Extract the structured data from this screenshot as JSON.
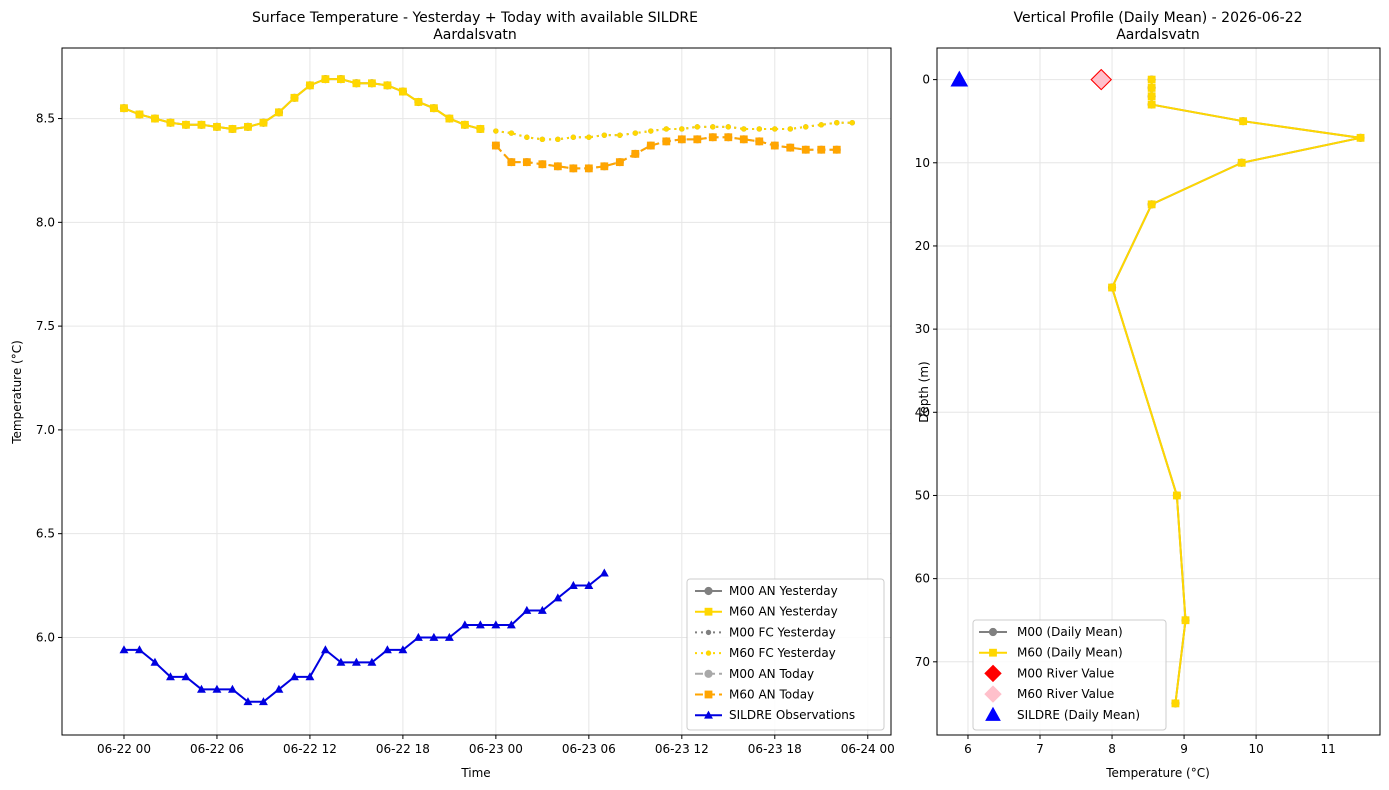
{
  "chart_data": [
    {
      "type": "line",
      "title": "Surface Temperature - Yesterday + Today with available SILDRE",
      "subtitle": "Aardalsvatn",
      "xlabel": "Time",
      "ylabel": "Temperature (°C)",
      "grid": true,
      "legend_position": "lower-right",
      "xlim": [
        "2026-06-21 20:00",
        "2026-06-24 01:30"
      ],
      "ylim": [
        5.53,
        8.84
      ],
      "x_tick_labels": [
        "06-22 00",
        "06-22 06",
        "06-22 12",
        "06-22 18",
        "06-23 00",
        "06-23 06",
        "06-23 12",
        "06-23 18",
        "06-24 00"
      ],
      "y_tick_labels": [
        "6.0",
        "6.5",
        "7.0",
        "7.5",
        "8.0",
        "8.5"
      ],
      "y_tick_values": [
        6.0,
        6.5,
        7.0,
        7.5,
        8.0,
        8.5
      ],
      "series": [
        {
          "name": "M00 AN Yesterday",
          "color": "#808080",
          "style": "solid",
          "marker": "circle",
          "start": "2026-06-22 00:00",
          "values": [
            8.55,
            8.52,
            8.5,
            8.48,
            8.47,
            8.47,
            8.46,
            8.45,
            8.46,
            8.48,
            8.53,
            8.6,
            8.66,
            8.69,
            8.69,
            8.67,
            8.67,
            8.66,
            8.63,
            8.58,
            8.55,
            8.5,
            8.47,
            8.45
          ]
        },
        {
          "name": "M60 AN Yesterday",
          "color": "#FFD700",
          "style": "solid",
          "marker": "square",
          "start": "2026-06-22 00:00",
          "values": [
            8.55,
            8.52,
            8.5,
            8.48,
            8.47,
            8.47,
            8.46,
            8.45,
            8.46,
            8.48,
            8.53,
            8.6,
            8.66,
            8.69,
            8.69,
            8.67,
            8.67,
            8.66,
            8.63,
            8.58,
            8.55,
            8.5,
            8.47,
            8.45
          ]
        },
        {
          "name": "M00 FC Yesterday",
          "color": "#808080",
          "style": "dotted",
          "marker": "circle-small",
          "start": "2026-06-23 00:00",
          "values": [
            8.44,
            8.43,
            8.41,
            8.4,
            8.4,
            8.41,
            8.41,
            8.42,
            8.42,
            8.43,
            8.44,
            8.45,
            8.45,
            8.46,
            8.46,
            8.46,
            8.45,
            8.45,
            8.45,
            8.45,
            8.46,
            8.47,
            8.48,
            8.48
          ]
        },
        {
          "name": "M60 FC Yesterday",
          "color": "#FFD700",
          "style": "dotted",
          "marker": "circle-small",
          "start": "2026-06-23 00:00",
          "values": [
            8.44,
            8.43,
            8.41,
            8.4,
            8.4,
            8.41,
            8.41,
            8.42,
            8.42,
            8.43,
            8.44,
            8.45,
            8.45,
            8.46,
            8.46,
            8.46,
            8.45,
            8.45,
            8.45,
            8.45,
            8.46,
            8.47,
            8.48,
            8.48
          ]
        },
        {
          "name": "M00 AN Today",
          "color": "#A9A9A9",
          "style": "dashed",
          "marker": "circle",
          "start": "2026-06-23 00:00",
          "values": [
            8.37,
            8.29,
            8.29,
            8.28,
            8.27,
            8.26,
            8.26,
            8.27,
            8.29,
            8.33,
            8.37,
            8.39,
            8.4,
            8.4,
            8.41,
            8.41,
            8.4,
            8.39,
            8.37,
            8.36,
            8.35,
            8.35,
            8.35
          ]
        },
        {
          "name": "M60 AN Today",
          "color": "#FFA500",
          "style": "dashed",
          "marker": "square",
          "start": "2026-06-23 00:00",
          "values": [
            8.37,
            8.29,
            8.29,
            8.28,
            8.27,
            8.26,
            8.26,
            8.27,
            8.29,
            8.33,
            8.37,
            8.39,
            8.4,
            8.4,
            8.41,
            8.41,
            8.4,
            8.39,
            8.37,
            8.36,
            8.35,
            8.35,
            8.35
          ]
        },
        {
          "name": "SILDRE Observations",
          "color": "#0000E0",
          "style": "solid",
          "marker": "triangle",
          "start": "2026-06-22 00:00",
          "values": [
            5.94,
            5.94,
            5.88,
            5.81,
            5.81,
            5.75,
            5.75,
            5.75,
            5.69,
            5.69,
            5.75,
            5.81,
            5.81,
            5.94,
            5.88,
            5.88,
            5.88,
            5.94,
            5.94,
            6.0,
            6.0,
            6.0,
            6.06,
            6.06,
            6.06,
            6.06,
            6.13,
            6.13,
            6.19,
            6.25,
            6.25,
            6.31
          ]
        }
      ]
    },
    {
      "type": "line",
      "title": "Vertical Profile (Daily Mean) - 2026-06-22",
      "subtitle": "Aardalsvatn",
      "xlabel": "Temperature (°C)",
      "ylabel": "Depth (m)",
      "grid": true,
      "legend_position": "lower-left",
      "y_inverted": true,
      "xlim": [
        5.57,
        11.72
      ],
      "ylim": [
        -3.8,
        78.8
      ],
      "x_tick_values": [
        6,
        7,
        8,
        9,
        10,
        11
      ],
      "x_tick_labels": [
        "6",
        "7",
        "8",
        "9",
        "10",
        "11"
      ],
      "y_tick_values": [
        0,
        10,
        20,
        30,
        40,
        50,
        60,
        70
      ],
      "y_tick_labels": [
        "0",
        "10",
        "20",
        "30",
        "40",
        "50",
        "60",
        "70"
      ],
      "series": [
        {
          "name": "M00 (Daily Mean)",
          "color": "#808080",
          "marker": "circle",
          "points": [
            [
              8.55,
              0
            ],
            [
              8.55,
              1
            ],
            [
              8.55,
              2
            ],
            [
              8.55,
              3
            ],
            [
              9.82,
              5
            ],
            [
              11.45,
              7
            ],
            [
              9.8,
              10
            ],
            [
              8.55,
              15
            ],
            [
              8.0,
              25
            ],
            [
              8.9,
              50
            ],
            [
              9.02,
              65
            ],
            [
              8.88,
              75
            ]
          ]
        },
        {
          "name": "M60 (Daily Mean)",
          "color": "#FFD700",
          "marker": "square",
          "points": [
            [
              8.55,
              0
            ],
            [
              8.55,
              1
            ],
            [
              8.55,
              2
            ],
            [
              8.55,
              3
            ],
            [
              9.82,
              5
            ],
            [
              11.45,
              7
            ],
            [
              9.8,
              10
            ],
            [
              8.55,
              15
            ],
            [
              8.0,
              25
            ],
            [
              8.9,
              50
            ],
            [
              9.02,
              65
            ],
            [
              8.88,
              75
            ]
          ]
        },
        {
          "name": "M00 River Value",
          "color": "#FF0000",
          "marker": "diamond",
          "points": [
            [
              7.85,
              0
            ]
          ]
        },
        {
          "name": "M60 River Value",
          "color": "#FFC0CB",
          "marker": "diamond",
          "points": [
            [
              7.85,
              0
            ]
          ]
        },
        {
          "name": "SILDRE (Daily Mean)",
          "color": "#0000FF",
          "marker": "triangle",
          "points": [
            [
              5.88,
              0
            ]
          ]
        }
      ]
    }
  ]
}
